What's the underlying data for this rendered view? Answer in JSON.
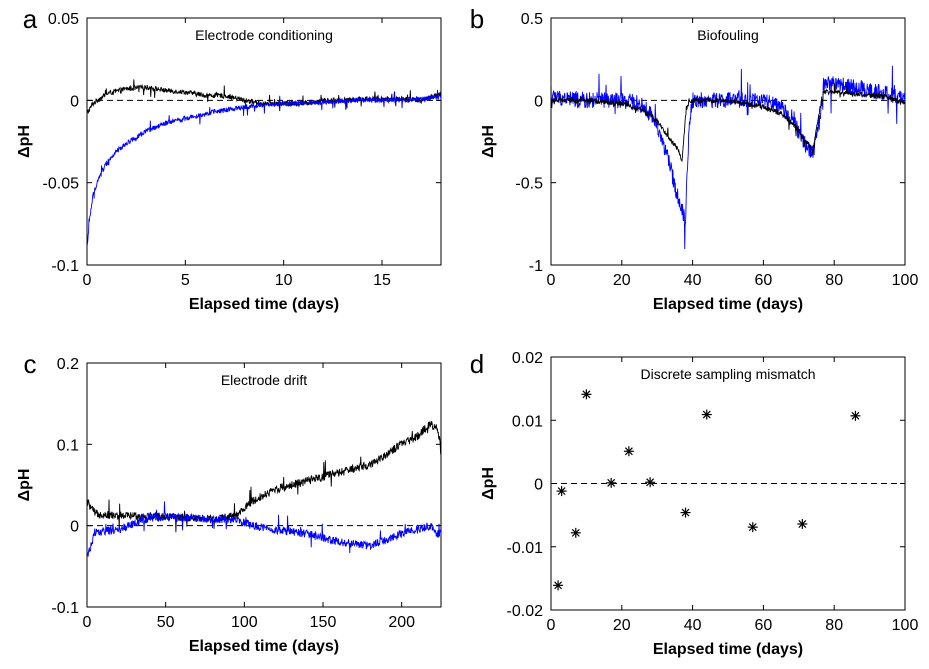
{
  "chart_data": [
    {
      "id": "a",
      "panel_label": "a",
      "type": "line",
      "title": "Electrode conditioning",
      "xlabel": "Elapsed time (days)",
      "ylabel": "ΔpH",
      "xlim": [
        0,
        18
      ],
      "ylim": [
        -0.1,
        0.05
      ],
      "xticks": [
        0,
        5,
        10,
        15
      ],
      "xtick_labels": [
        "0",
        "5",
        "10",
        "15"
      ],
      "yticks": [
        -0.1,
        -0.05,
        0,
        0.05
      ],
      "ytick_labels": [
        "-0.1",
        "-0.05",
        "0",
        "0.05"
      ],
      "reference_line": 0,
      "series": [
        {
          "color": "#000000",
          "noise": 0.0015,
          "x": [
            0,
            0.3,
            1,
            2,
            3,
            4,
            5,
            6,
            7,
            8,
            9,
            10,
            11,
            12,
            13,
            14,
            15,
            16,
            17,
            18
          ],
          "y": [
            -0.008,
            -0.002,
            0.004,
            0.007,
            0.008,
            0.006,
            0.005,
            0.003,
            0.003,
            0.0,
            -0.002,
            -0.002,
            -0.002,
            0.0,
            0.0,
            0.001,
            0.001,
            0.001,
            0.0,
            0.004
          ]
        },
        {
          "color": "#0000ff",
          "noise": 0.0015,
          "x": [
            0,
            0.1,
            0.3,
            0.6,
            1,
            1.5,
            2,
            3,
            4,
            5,
            6,
            7,
            8,
            9,
            10,
            12,
            14,
            16,
            18
          ],
          "y": [
            -0.092,
            -0.075,
            -0.058,
            -0.047,
            -0.038,
            -0.031,
            -0.026,
            -0.019,
            -0.014,
            -0.011,
            -0.008,
            -0.006,
            -0.004,
            -0.003,
            -0.002,
            -0.001,
            0.0,
            0.0,
            0.002
          ]
        }
      ]
    },
    {
      "id": "b",
      "panel_label": "b",
      "type": "line",
      "title": "Biofouling",
      "xlabel": "Elapsed time (days)",
      "ylabel": "ΔpH",
      "xlim": [
        0,
        100
      ],
      "ylim": [
        -1,
        0.5
      ],
      "xticks": [
        0,
        20,
        40,
        60,
        80,
        100
      ],
      "xtick_labels": [
        "0",
        "20",
        "40",
        "60",
        "80",
        "100"
      ],
      "yticks": [
        -1,
        -0.5,
        0,
        0.5
      ],
      "ytick_labels": [
        "-1",
        "-0.5",
        "0",
        "0.5"
      ],
      "reference_line": 0,
      "series": [
        {
          "color": "#0000ff",
          "noise": 0.05,
          "x": [
            0,
            10,
            20,
            25,
            28,
            30,
            33,
            36,
            38,
            39,
            40,
            45,
            50,
            55,
            60,
            65,
            68,
            70,
            72,
            74,
            76,
            77,
            80,
            85,
            90,
            95,
            100
          ],
          "y": [
            0.02,
            0.0,
            0.0,
            -0.02,
            -0.08,
            -0.15,
            -0.35,
            -0.6,
            -0.72,
            -0.15,
            0.0,
            0.0,
            0.0,
            0.0,
            0.0,
            -0.05,
            -0.1,
            -0.2,
            -0.28,
            -0.32,
            -0.1,
            0.1,
            0.1,
            0.08,
            0.06,
            0.04,
            0.0
          ]
        },
        {
          "color": "#000000",
          "noise": 0.015,
          "x": [
            0,
            10,
            20,
            25,
            30,
            33,
            36,
            37,
            38,
            39,
            40,
            45,
            50,
            55,
            60,
            65,
            70,
            72,
            74,
            76,
            77,
            80,
            85,
            90,
            95,
            100
          ],
          "y": [
            0.0,
            0.0,
            -0.02,
            -0.05,
            -0.12,
            -0.22,
            -0.3,
            -0.38,
            -0.1,
            0.0,
            0.0,
            0.0,
            0.0,
            -0.02,
            -0.04,
            -0.08,
            -0.18,
            -0.25,
            -0.3,
            -0.05,
            0.05,
            0.05,
            0.04,
            0.03,
            0.02,
            -0.02
          ]
        }
      ]
    },
    {
      "id": "c",
      "panel_label": "c",
      "type": "line",
      "title": "Electrode drift",
      "xlabel": "Elapsed time (days)",
      "ylabel": "ΔpH",
      "xlim": [
        0,
        225
      ],
      "ylim": [
        -0.1,
        0.2
      ],
      "xticks": [
        0,
        50,
        100,
        150,
        200
      ],
      "xtick_labels": [
        "0",
        "50",
        "100",
        "150",
        "200"
      ],
      "yticks": [
        -0.1,
        0,
        0.1,
        0.2
      ],
      "ytick_labels": [
        "-0.1",
        "0",
        "0.1",
        "0.2"
      ],
      "reference_line": 0,
      "series": [
        {
          "color": "#000000",
          "noise": 0.005,
          "x": [
            0,
            5,
            20,
            40,
            60,
            80,
            95,
            105,
            120,
            140,
            160,
            180,
            200,
            210,
            218,
            222,
            225
          ],
          "y": [
            0.03,
            0.015,
            0.012,
            0.012,
            0.01,
            0.008,
            0.012,
            0.03,
            0.045,
            0.055,
            0.065,
            0.075,
            0.1,
            0.11,
            0.125,
            0.12,
            0.1
          ]
        },
        {
          "color": "#0000ff",
          "noise": 0.005,
          "x": [
            0,
            5,
            20,
            40,
            60,
            80,
            95,
            105,
            120,
            140,
            160,
            180,
            200,
            210,
            218,
            222,
            225
          ],
          "y": [
            -0.04,
            -0.008,
            -0.005,
            0.01,
            0.01,
            0.008,
            0.008,
            0.0,
            -0.005,
            -0.01,
            -0.02,
            -0.025,
            -0.01,
            -0.005,
            0.0,
            -0.01,
            -0.01
          ]
        }
      ]
    },
    {
      "id": "d",
      "panel_label": "d",
      "type": "scatter",
      "title": "Discrete sampling mismatch",
      "xlabel": "Elapsed time (days)",
      "ylabel": "ΔpH",
      "xlim": [
        0,
        100
      ],
      "ylim": [
        -0.02,
        0.02
      ],
      "xticks": [
        0,
        20,
        40,
        60,
        80,
        100
      ],
      "xtick_labels": [
        "0",
        "20",
        "40",
        "60",
        "80",
        "100"
      ],
      "yticks": [
        -0.02,
        -0.01,
        0,
        0.01,
        0.02
      ],
      "ytick_labels": [
        "-0.02",
        "-0.01",
        "0",
        "0.01",
        "0.02"
      ],
      "reference_line": 0,
      "marker": "*",
      "series": [
        {
          "color": "#000000",
          "x": [
            2,
            3,
            7,
            10,
            17,
            22,
            28,
            38,
            44,
            57,
            71,
            86
          ],
          "y": [
            -0.0161,
            -0.0012,
            -0.0078,
            0.0141,
            0.0001,
            0.0051,
            0.0002,
            -0.0046,
            0.0109,
            -0.0069,
            -0.0064,
            0.0107
          ]
        }
      ]
    }
  ]
}
